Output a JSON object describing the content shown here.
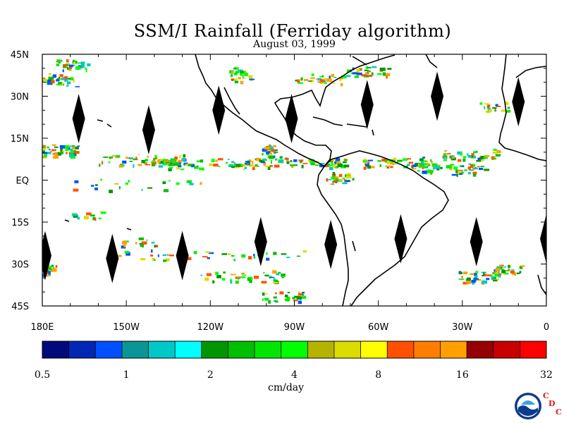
{
  "title": "SSM/I Rainfall (Ferriday algorithm)",
  "date": "August 03, 1999",
  "lat_labels": [
    "45N",
    "30N",
    "15N",
    "EQ",
    "15S",
    "30S",
    "45S"
  ],
  "lon_labels": [
    "180E",
    "150W",
    "120W",
    "90W",
    "60W",
    "30W",
    "0"
  ],
  "colorbar": {
    "colors": [
      "#000a7a",
      "#0028b4",
      "#0050ff",
      "#0a9696",
      "#00c8c8",
      "#00ffff",
      "#009600",
      "#00be00",
      "#00e600",
      "#00ff00",
      "#b4b400",
      "#dcdc00",
      "#ffff00",
      "#ff5000",
      "#ff7d00",
      "#ffa000",
      "#960000",
      "#c80000",
      "#ff0000"
    ],
    "tick_labels": [
      "0.5",
      "1",
      "2",
      "4",
      "8",
      "16",
      "32"
    ],
    "units": "cm/day"
  },
  "logo": {
    "agency": "NOAA",
    "cdc_letters": [
      "C",
      "D",
      "C"
    ]
  },
  "map_data": {
    "lon_range": [
      -180,
      0
    ],
    "lat_range": [
      -45,
      45
    ],
    "gap_swaths": [
      {
        "lon": -167,
        "lat": 22
      },
      {
        "lon": -142,
        "lat": 18
      },
      {
        "lon": -117,
        "lat": 25
      },
      {
        "lon": -91,
        "lat": 22
      },
      {
        "lon": -64,
        "lat": 27
      },
      {
        "lon": -39,
        "lat": 30
      },
      {
        "lon": -10,
        "lat": 28
      },
      {
        "lon": -179,
        "lat": -27
      },
      {
        "lon": -155,
        "lat": -28
      },
      {
        "lon": -130,
        "lat": -27
      },
      {
        "lon": -102,
        "lat": -22
      },
      {
        "lon": -77,
        "lat": -23
      },
      {
        "lon": -52,
        "lat": -21
      },
      {
        "lon": -25,
        "lat": -22
      },
      {
        "lon": 0,
        "lat": -21
      }
    ]
  }
}
